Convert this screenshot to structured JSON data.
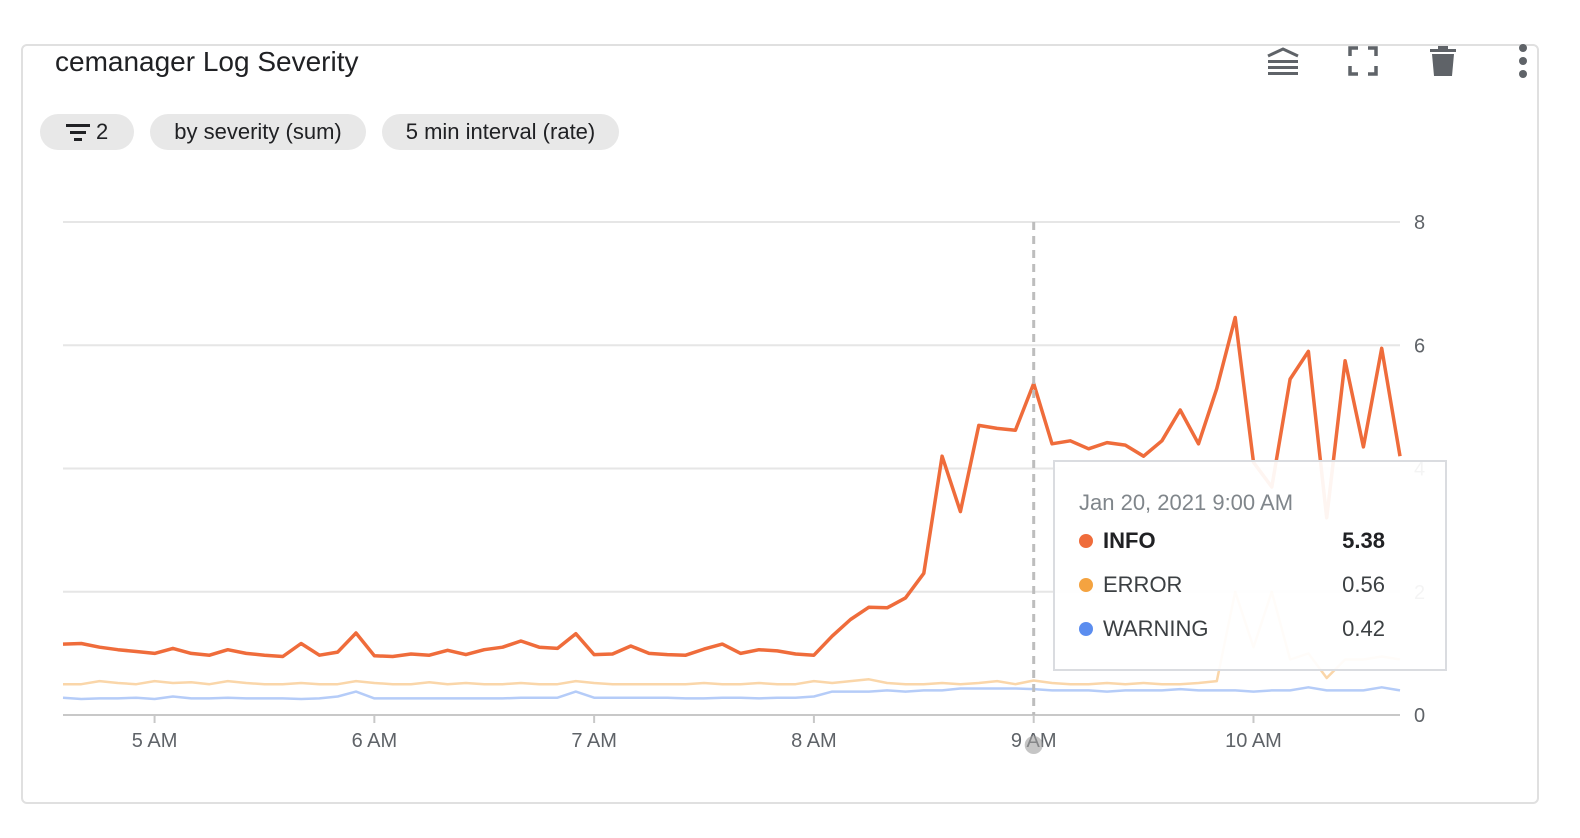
{
  "card": {
    "title": "cemanager Log Severity",
    "actions": [
      {
        "name": "legend-toggle-icon"
      },
      {
        "name": "fullscreen-icon"
      },
      {
        "name": "delete-icon"
      },
      {
        "name": "more-vert-icon"
      }
    ],
    "chips": {
      "filter_count": "2",
      "group_by": "by severity (sum)",
      "interval": "5 min interval (rate)"
    }
  },
  "tooltip": {
    "date": "Jan 20, 2021 9:00 AM",
    "rows": [
      {
        "label": "INFO",
        "value": "5.38",
        "color": "#ef6c3b"
      },
      {
        "label": "ERROR",
        "value": "0.56",
        "color": "#f4a340"
      },
      {
        "label": "WARNING",
        "value": "0.42",
        "color": "#5b8def"
      }
    ]
  },
  "chart_data": {
    "type": "line",
    "title": "",
    "xlabel": "",
    "ylabel": "",
    "x_start": "4:35 AM",
    "x_end": "10:40 AM",
    "x_step_minutes": 5,
    "x_ticks": [
      "5 AM",
      "6 AM",
      "7 AM",
      "8 AM",
      "9 AM",
      "10 AM"
    ],
    "y_ticks": [
      0,
      2,
      4,
      6,
      8
    ],
    "ylim": [
      0,
      8
    ],
    "y_axis_position": "right",
    "grid": true,
    "cursor_time": "9 AM",
    "series": [
      {
        "name": "INFO",
        "color": "#ef6c3b",
        "values": [
          1.15,
          1.16,
          1.1,
          1.06,
          1.03,
          1.0,
          1.08,
          1.0,
          0.97,
          1.06,
          1.0,
          0.97,
          0.95,
          1.16,
          0.97,
          1.02,
          1.33,
          0.96,
          0.95,
          0.99,
          0.97,
          1.05,
          0.98,
          1.06,
          1.1,
          1.2,
          1.1,
          1.08,
          1.32,
          0.98,
          0.99,
          1.12,
          1.0,
          0.98,
          0.97,
          1.07,
          1.15,
          1.0,
          1.06,
          1.04,
          0.99,
          0.97,
          1.28,
          1.55,
          1.75,
          1.74,
          1.9,
          2.3,
          4.2,
          3.3,
          4.7,
          4.65,
          4.62,
          5.38,
          4.4,
          4.45,
          4.32,
          4.42,
          4.38,
          4.2,
          4.45,
          4.95,
          4.4,
          5.3,
          6.45,
          4.1,
          3.7,
          5.45,
          5.9,
          3.2,
          5.75,
          4.35,
          5.95,
          4.2
        ]
      },
      {
        "name": "ERROR",
        "color": "#f4a340",
        "values": [
          0.5,
          0.5,
          0.55,
          0.52,
          0.5,
          0.55,
          0.52,
          0.53,
          0.5,
          0.55,
          0.52,
          0.5,
          0.5,
          0.52,
          0.5,
          0.5,
          0.55,
          0.52,
          0.5,
          0.5,
          0.53,
          0.5,
          0.52,
          0.5,
          0.5,
          0.52,
          0.5,
          0.5,
          0.55,
          0.52,
          0.5,
          0.5,
          0.5,
          0.5,
          0.5,
          0.52,
          0.5,
          0.5,
          0.52,
          0.5,
          0.5,
          0.55,
          0.52,
          0.55,
          0.58,
          0.52,
          0.5,
          0.5,
          0.52,
          0.5,
          0.52,
          0.55,
          0.5,
          0.56,
          0.52,
          0.5,
          0.5,
          0.52,
          0.5,
          0.52,
          0.5,
          0.5,
          0.52,
          0.55,
          2.0,
          1.1,
          2.0,
          0.9,
          1.0,
          0.6,
          0.9,
          0.9,
          0.95,
          0.9
        ]
      },
      {
        "name": "WARNING",
        "color": "#5b8def",
        "values": [
          0.28,
          0.26,
          0.27,
          0.27,
          0.28,
          0.26,
          0.3,
          0.27,
          0.27,
          0.28,
          0.27,
          0.27,
          0.27,
          0.26,
          0.27,
          0.3,
          0.38,
          0.27,
          0.27,
          0.27,
          0.27,
          0.27,
          0.27,
          0.27,
          0.27,
          0.28,
          0.28,
          0.28,
          0.38,
          0.28,
          0.28,
          0.28,
          0.28,
          0.28,
          0.27,
          0.27,
          0.28,
          0.28,
          0.27,
          0.28,
          0.28,
          0.3,
          0.38,
          0.38,
          0.38,
          0.4,
          0.38,
          0.4,
          0.4,
          0.43,
          0.43,
          0.43,
          0.43,
          0.42,
          0.4,
          0.4,
          0.4,
          0.38,
          0.4,
          0.4,
          0.4,
          0.42,
          0.4,
          0.4,
          0.4,
          0.38,
          0.4,
          0.4,
          0.45,
          0.4,
          0.4,
          0.4,
          0.45,
          0.4
        ]
      }
    ]
  }
}
